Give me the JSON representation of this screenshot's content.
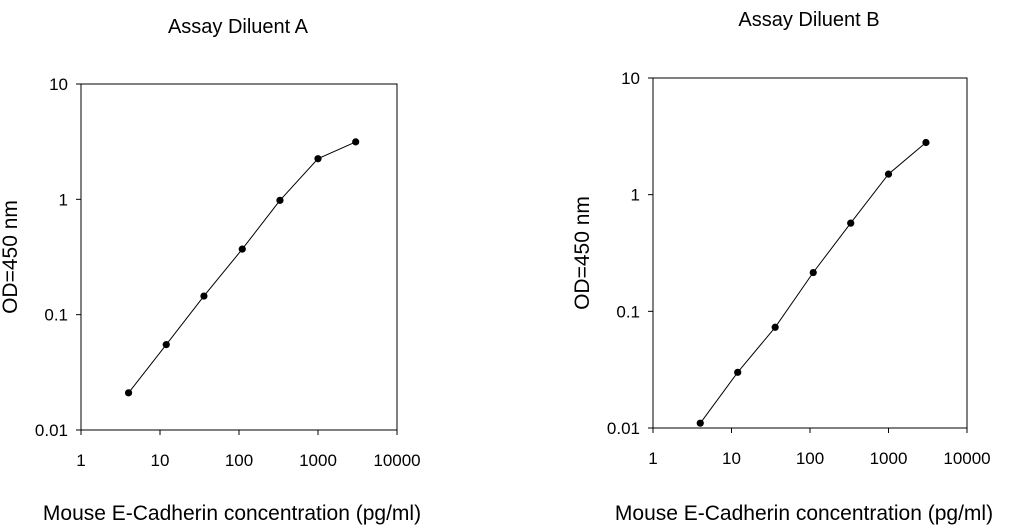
{
  "chart_data": [
    {
      "type": "line",
      "title": "Assay Diluent A",
      "xlabel": "Mouse E-Cadherin concentration (pg/ml)",
      "ylabel": "OD=450 nm",
      "xscale": "log",
      "yscale": "log",
      "xlim": [
        1,
        10000
      ],
      "ylim": [
        0.01,
        10
      ],
      "x_ticks": [
        "1",
        "10",
        "100",
        "1000",
        "10000"
      ],
      "y_ticks": [
        "0.01",
        "0.1",
        "1",
        "10"
      ],
      "grid": false,
      "legend": "none",
      "series": [
        {
          "x": [
            4,
            12,
            36,
            110,
            330,
            1000,
            3000
          ],
          "y": [
            0.021,
            0.055,
            0.145,
            0.37,
            0.98,
            2.25,
            3.15
          ]
        }
      ]
    },
    {
      "type": "line",
      "title": "Assay Diluent B",
      "xlabel": "Mouse E-Cadherin concentration (pg/ml)",
      "ylabel": "OD=450 nm",
      "xscale": "log",
      "yscale": "log",
      "xlim": [
        1,
        10000
      ],
      "ylim": [
        0.01,
        10
      ],
      "x_ticks": [
        "1",
        "10",
        "100",
        "1000",
        "10000"
      ],
      "y_ticks": [
        "0.01",
        "0.1",
        "1",
        "10"
      ],
      "grid": false,
      "legend": "none",
      "series": [
        {
          "x": [
            4,
            12,
            36,
            110,
            330,
            1000,
            3000
          ],
          "y": [
            0.011,
            0.03,
            0.073,
            0.215,
            0.57,
            1.5,
            2.8
          ]
        }
      ]
    }
  ]
}
